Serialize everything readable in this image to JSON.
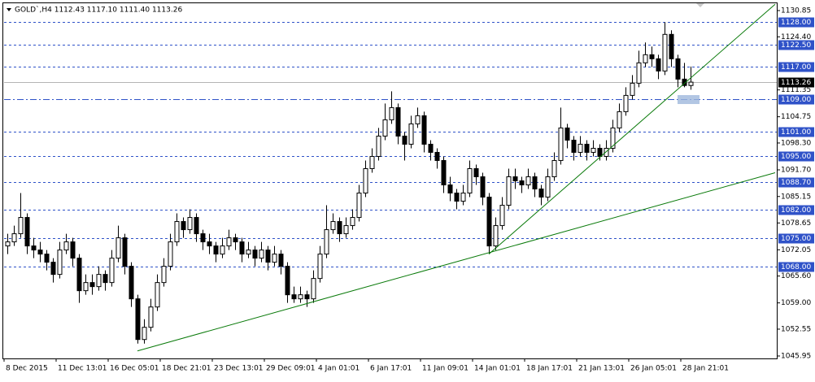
{
  "chart_data": {
    "type": "candlestick",
    "title": "GOLD`,H4  1112.43 1117.10 1111.40 1113.26",
    "categories": [
      "8 Dec 2015",
      null,
      null,
      null,
      null,
      null,
      null,
      null,
      "11 Dec 13:01",
      null,
      null,
      null,
      null,
      null,
      null,
      null,
      "16 Dec 05:01",
      null,
      null,
      null,
      null,
      null,
      null,
      null,
      "18 Dec 21:01",
      null,
      null,
      null,
      null,
      null,
      null,
      null,
      "23 Dec 13:01",
      null,
      null,
      null,
      null,
      null,
      null,
      null,
      "29 Dec 09:01",
      null,
      null,
      null,
      null,
      null,
      null,
      null,
      "4 Jan 01:01",
      null,
      null,
      null,
      null,
      null,
      null,
      null,
      "6 Jan 17:01",
      null,
      null,
      null,
      null,
      null,
      null,
      null,
      "11 Jan 09:01",
      null,
      null,
      null,
      null,
      null,
      null,
      null,
      "14 Jan 01:01",
      null,
      null,
      null,
      null,
      null,
      null,
      null,
      "18 Jan 17:01",
      null,
      null,
      null,
      null,
      null,
      null,
      null,
      "21 Jan 13:01",
      null,
      null,
      null,
      null,
      null,
      null,
      null,
      "26 Jan 05:01",
      null,
      null,
      null,
      null,
      null,
      null,
      null,
      "28 Jan 21:01",
      null,
      null,
      null,
      null,
      null,
      null,
      null,
      null,
      null
    ],
    "ohlc": [
      [
        1073,
        1076,
        1071,
        1074
      ],
      [
        1074,
        1078,
        1073,
        1076
      ],
      [
        1076,
        1086,
        1075,
        1080
      ],
      [
        1080,
        1081,
        1071,
        1073
      ],
      [
        1073,
        1075,
        1070,
        1072
      ],
      [
        1072,
        1074,
        1069,
        1071
      ],
      [
        1071,
        1072,
        1067,
        1069
      ],
      [
        1069,
        1070,
        1064,
        1066
      ],
      [
        1066,
        1074,
        1065,
        1072
      ],
      [
        1072,
        1076,
        1071,
        1074
      ],
      [
        1074,
        1075,
        1068,
        1070
      ],
      [
        1070,
        1071,
        1059,
        1062
      ],
      [
        1062,
        1066,
        1061,
        1064
      ],
      [
        1064,
        1066,
        1061,
        1063
      ],
      [
        1063,
        1068,
        1062,
        1066
      ],
      [
        1066,
        1067,
        1062,
        1064
      ],
      [
        1064,
        1072,
        1063,
        1070
      ],
      [
        1070,
        1078,
        1069,
        1075
      ],
      [
        1075,
        1076,
        1066,
        1068
      ],
      [
        1068,
        1069,
        1058,
        1060
      ],
      [
        1060,
        1061,
        1049,
        1050
      ],
      [
        1050,
        1055,
        1049,
        1053
      ],
      [
        1053,
        1060,
        1052,
        1058
      ],
      [
        1058,
        1066,
        1057,
        1064
      ],
      [
        1064,
        1070,
        1063,
        1068
      ],
      [
        1068,
        1076,
        1067,
        1074
      ],
      [
        1074,
        1081,
        1073,
        1079
      ],
      [
        1079,
        1080,
        1075,
        1077
      ],
      [
        1077,
        1082,
        1076,
        1080
      ],
      [
        1080,
        1081,
        1074,
        1076
      ],
      [
        1076,
        1077,
        1072,
        1074
      ],
      [
        1074,
        1076,
        1071,
        1073
      ],
      [
        1073,
        1074,
        1069,
        1071
      ],
      [
        1071,
        1075,
        1070,
        1073
      ],
      [
        1073,
        1077,
        1072,
        1075
      ],
      [
        1075,
        1076,
        1072,
        1074
      ],
      [
        1074,
        1075,
        1069,
        1071
      ],
      [
        1071,
        1074,
        1070,
        1072
      ],
      [
        1072,
        1073,
        1068,
        1070
      ],
      [
        1070,
        1074,
        1069,
        1072
      ],
      [
        1072,
        1073,
        1067,
        1069
      ],
      [
        1069,
        1073,
        1068,
        1071
      ],
      [
        1071,
        1072,
        1066,
        1068
      ],
      [
        1068,
        1069,
        1059,
        1061
      ],
      [
        1061,
        1063,
        1059,
        1060
      ],
      [
        1060,
        1063,
        1059,
        1061
      ],
      [
        1061,
        1062,
        1058,
        1060
      ],
      [
        1060,
        1067,
        1059,
        1065
      ],
      [
        1065,
        1073,
        1064,
        1071
      ],
      [
        1071,
        1083,
        1070,
        1077
      ],
      [
        1077,
        1081,
        1076,
        1079
      ],
      [
        1079,
        1080,
        1074,
        1076
      ],
      [
        1076,
        1080,
        1075,
        1078
      ],
      [
        1078,
        1082,
        1077,
        1080
      ],
      [
        1080,
        1088,
        1079,
        1086
      ],
      [
        1086,
        1094,
        1085,
        1092
      ],
      [
        1092,
        1097,
        1091,
        1095
      ],
      [
        1095,
        1102,
        1094,
        1100
      ],
      [
        1100,
        1108,
        1099,
        1104
      ],
      [
        1104,
        1111,
        1103,
        1107
      ],
      [
        1107,
        1108,
        1098,
        1100
      ],
      [
        1100,
        1101,
        1094,
        1098
      ],
      [
        1098,
        1105,
        1097,
        1103
      ],
      [
        1103,
        1107,
        1102,
        1105
      ],
      [
        1105,
        1106,
        1096,
        1098
      ],
      [
        1098,
        1099,
        1094,
        1096
      ],
      [
        1096,
        1097,
        1092,
        1094
      ],
      [
        1094,
        1095,
        1086,
        1088
      ],
      [
        1088,
        1090,
        1084,
        1086
      ],
      [
        1086,
        1087,
        1082,
        1084
      ],
      [
        1084,
        1088,
        1083,
        1086
      ],
      [
        1086,
        1094,
        1085,
        1092
      ],
      [
        1092,
        1093,
        1088,
        1090
      ],
      [
        1090,
        1091,
        1083,
        1085
      ],
      [
        1085,
        1086,
        1071,
        1073
      ],
      [
        1073,
        1080,
        1072,
        1078
      ],
      [
        1078,
        1085,
        1077,
        1083
      ],
      [
        1083,
        1092,
        1082,
        1090
      ],
      [
        1090,
        1092,
        1087,
        1089
      ],
      [
        1089,
        1090,
        1086,
        1088
      ],
      [
        1088,
        1092,
        1087,
        1090
      ],
      [
        1090,
        1091,
        1085,
        1087
      ],
      [
        1087,
        1088,
        1083,
        1085
      ],
      [
        1085,
        1092,
        1084,
        1090
      ],
      [
        1090,
        1096,
        1089,
        1094
      ],
      [
        1094,
        1107,
        1093,
        1102
      ],
      [
        1102,
        1103,
        1097,
        1099
      ],
      [
        1099,
        1100,
        1094,
        1096
      ],
      [
        1096,
        1100,
        1095,
        1098
      ],
      [
        1098,
        1099,
        1094,
        1096
      ],
      [
        1096,
        1099,
        1095,
        1097
      ],
      [
        1097,
        1098,
        1094,
        1095
      ],
      [
        1095,
        1099,
        1094,
        1097
      ],
      [
        1097,
        1104,
        1096,
        1102
      ],
      [
        1102,
        1108,
        1101,
        1106
      ],
      [
        1106,
        1112,
        1105,
        1110
      ],
      [
        1110,
        1115,
        1109,
        1113
      ],
      [
        1113,
        1121,
        1112,
        1118
      ],
      [
        1118,
        1123,
        1117,
        1120
      ],
      [
        1120,
        1122,
        1117,
        1119
      ],
      [
        1119,
        1120,
        1114,
        1116
      ],
      [
        1116,
        1128,
        1115,
        1125
      ],
      [
        1125,
        1126,
        1117,
        1119
      ],
      [
        1119,
        1120,
        1112,
        1114
      ],
      [
        1114,
        1118,
        1112,
        1112.43
      ],
      [
        1112.43,
        1117.1,
        1111.4,
        1113.26
      ]
    ],
    "bull_color": "#ffffff",
    "bear_color": "#000000",
    "ylim": [
      1045.55,
      1132.45
    ],
    "yticks": [
      {
        "value": 1130.85,
        "label": "1130.85"
      },
      {
        "value": 1124.4,
        "label": "1124.40"
      },
      {
        "value": 1111.35,
        "label": "1111.35"
      },
      {
        "value": 1104.75,
        "label": "1104.75"
      },
      {
        "value": 1098.3,
        "label": "1098.30"
      },
      {
        "value": 1091.7,
        "label": "1091.70"
      },
      {
        "value": 1085.15,
        "label": "1085.15"
      },
      {
        "value": 1078.65,
        "label": "1078.65"
      },
      {
        "value": 1072.05,
        "label": "1072.05"
      },
      {
        "value": 1065.6,
        "label": "1065.60"
      },
      {
        "value": 1059,
        "label": "1059.00"
      },
      {
        "value": 1052.55,
        "label": "1052.55"
      },
      {
        "value": 1045.95,
        "label": "1045.95"
      }
    ],
    "levels": [
      {
        "value": 1128,
        "label": "1128.00"
      },
      {
        "value": 1122.5,
        "label": "1122.50"
      },
      {
        "value": 1117,
        "label": "1117.00"
      },
      {
        "value": 1109,
        "label": "1109.00",
        "style": "dashdot"
      },
      {
        "value": 1101,
        "label": "1101.00"
      },
      {
        "value": 1095,
        "label": "1095.00"
      },
      {
        "value": 1088.7,
        "label": "1088.70"
      },
      {
        "value": 1082,
        "label": "1082.00"
      },
      {
        "value": 1075,
        "label": "1075.00"
      },
      {
        "value": 1068,
        "label": "1068.00"
      }
    ],
    "level_color": "#2f52c8",
    "bid": {
      "value": 1113.26,
      "label": "1113.26"
    },
    "trendlines": [
      {
        "x": [
          20,
          118
        ],
        "y": [
          1047.2,
          1091
        ],
        "color": "#0a7a0a"
      },
      {
        "x": [
          74,
          118
        ],
        "y": [
          1071,
          1132.4
        ],
        "color": "#0a7a0a"
      }
    ]
  }
}
